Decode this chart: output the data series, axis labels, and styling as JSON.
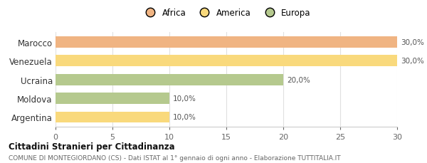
{
  "categories": [
    "Marocco",
    "Venezuela",
    "Ucraina",
    "Moldova",
    "Argentina"
  ],
  "values": [
    30.0,
    30.0,
    20.0,
    10.0,
    10.0
  ],
  "colors": [
    "#f0b482",
    "#f9d97c",
    "#b5c98e",
    "#b5c98e",
    "#f9d97c"
  ],
  "bar_labels": [
    "30,0%",
    "30,0%",
    "20,0%",
    "10,0%",
    "10,0%"
  ],
  "legend_entries": [
    {
      "label": "Africa",
      "color": "#f0b482"
    },
    {
      "label": "America",
      "color": "#f9d97c"
    },
    {
      "label": "Europa",
      "color": "#b5c98e"
    }
  ],
  "xlim": [
    0,
    30
  ],
  "xticks": [
    0,
    5,
    10,
    15,
    20,
    25,
    30
  ],
  "title_bold": "Cittadini Stranieri per Cittadinanza",
  "subtitle": "COMUNE DI MONTEGIORDANO (CS) - Dati ISTAT al 1° gennaio di ogni anno - Elaborazione TUTTITALIA.IT",
  "background_color": "#ffffff",
  "grid_color": "#e0e0e0"
}
